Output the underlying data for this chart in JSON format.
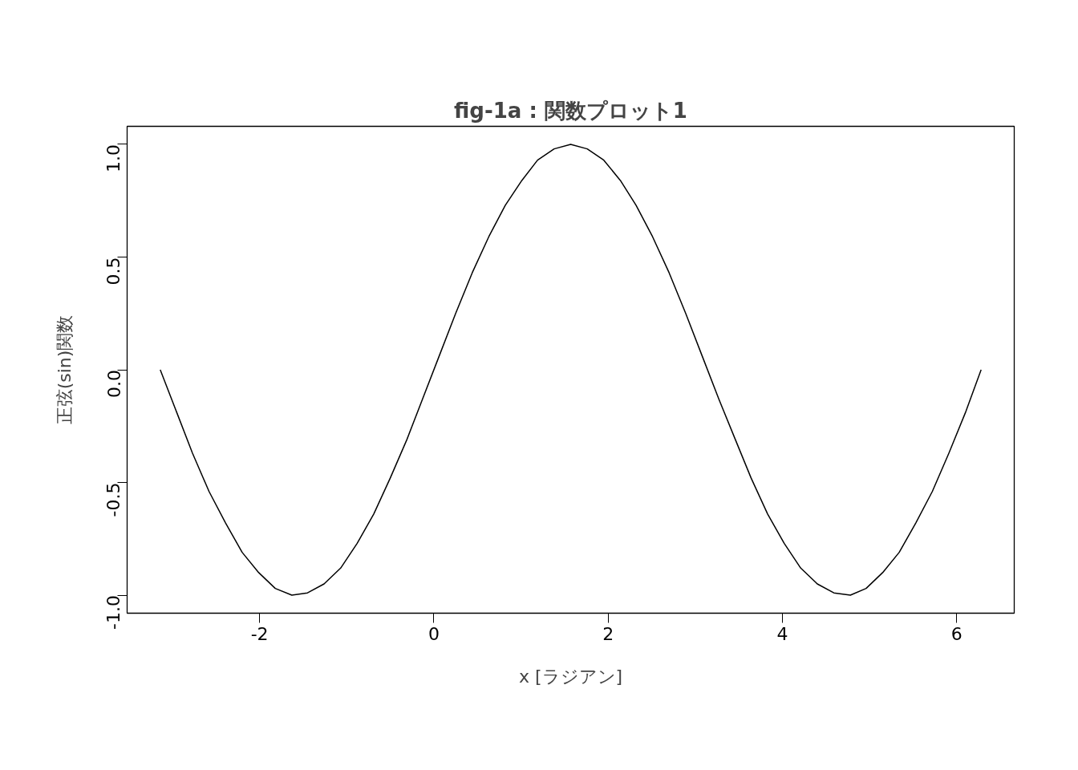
{
  "chart_data": {
    "type": "line",
    "title": "fig-1a : 関数プロット1",
    "xlabel": "x [ラジアン]",
    "ylabel": "正弦(sin)関数",
    "x": [
      -3.14,
      -2.95,
      -2.77,
      -2.58,
      -2.39,
      -2.2,
      -2.01,
      -1.82,
      -1.63,
      -1.45,
      -1.26,
      -1.07,
      -0.88,
      -0.69,
      -0.5,
      -0.31,
      -0.13,
      0.06,
      0.25,
      0.44,
      0.63,
      0.82,
      1.01,
      1.19,
      1.38,
      1.57,
      1.76,
      1.95,
      2.14,
      2.32,
      2.51,
      2.7,
      2.89,
      3.08,
      3.27,
      3.46,
      3.64,
      3.83,
      4.02,
      4.21,
      4.4,
      4.59,
      4.78,
      4.96,
      5.15,
      5.34,
      5.53,
      5.72,
      5.91,
      6.1,
      6.28
    ],
    "series": [
      {
        "color": "#000000",
        "values": [
          0.0,
          -0.19,
          -0.37,
          -0.54,
          -0.68,
          -0.81,
          -0.9,
          -0.97,
          -1.0,
          -0.99,
          -0.95,
          -0.88,
          -0.77,
          -0.64,
          -0.48,
          -0.31,
          -0.13,
          0.06,
          0.25,
          0.43,
          0.59,
          0.73,
          0.84,
          0.93,
          0.98,
          1.0,
          0.98,
          0.93,
          0.84,
          0.73,
          0.59,
          0.43,
          0.25,
          0.06,
          -0.13,
          -0.31,
          -0.48,
          -0.64,
          -0.77,
          -0.88,
          -0.95,
          -0.99,
          -1.0,
          -0.97,
          -0.9,
          -0.81,
          -0.68,
          -0.54,
          -0.37,
          -0.19,
          0.0
        ]
      }
    ],
    "xlim": [
      -3.52,
      6.66
    ],
    "ylim": [
      -1.08,
      1.08
    ],
    "xticks": [
      -2,
      0,
      2,
      4,
      6
    ],
    "yticks": [
      {
        "value": -1,
        "label": "-1.0"
      },
      {
        "value": -0.5,
        "label": "-0.5"
      },
      {
        "value": 0,
        "label": "0.0"
      },
      {
        "value": 0.5,
        "label": "0.5"
      },
      {
        "value": 1,
        "label": "1.0"
      }
    ],
    "grid": false
  }
}
